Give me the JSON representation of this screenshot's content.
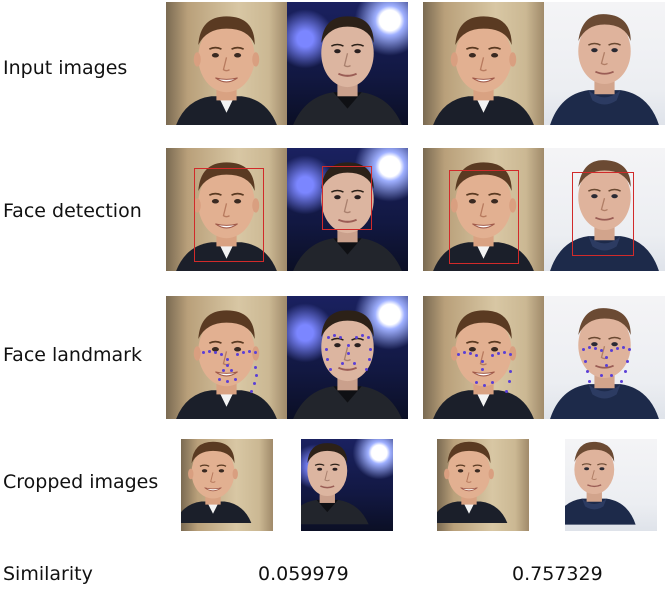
{
  "rows": [
    {
      "label": "Input images"
    },
    {
      "label": "Face detection"
    },
    {
      "label": "Face landmark"
    },
    {
      "label": "Cropped images"
    }
  ],
  "similarity": {
    "label": "Similarity",
    "pair1": "0.059979",
    "pair2": "0.757329"
  },
  "colors": {
    "detection_box": "#d12a2a",
    "landmarks": "#5b3fd6"
  },
  "icons": [
    "face-photo-macron",
    "face-photo-musk"
  ]
}
